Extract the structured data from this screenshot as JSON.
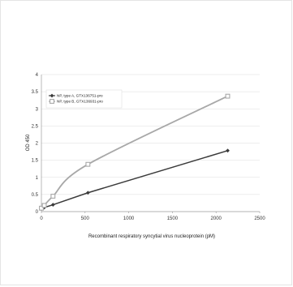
{
  "chart_data": {
    "type": "line",
    "title": "",
    "xlabel": "Recombinant respiratory syncytial virus nucleoprotein (pM)",
    "ylabel": "OD 450",
    "xlim": [
      0,
      2500
    ],
    "ylim": [
      0,
      4
    ],
    "xticks": [
      "0",
      "500",
      "1000",
      "1500",
      "2000",
      "2500"
    ],
    "yticks": [
      "0",
      "0.5",
      "1",
      "1.5",
      "2",
      "2.5",
      "3",
      "3.5",
      "4"
    ],
    "grid": "horizontal",
    "legend_position": "top-left",
    "series": [
      {
        "name": "NP, type A, GTX136751-pro",
        "color": "#3a3a3a",
        "marker": "diamond",
        "x": [
          0,
          33,
          133,
          533,
          2133
        ],
        "y": [
          0.08,
          0.12,
          0.2,
          0.55,
          1.78
        ]
      },
      {
        "name": "NP, type B, GTX136931-pro",
        "color": "#a8a8a8",
        "marker": "square",
        "x": [
          0,
          33,
          133,
          533,
          2133
        ],
        "y": [
          0.1,
          0.18,
          0.45,
          1.38,
          3.37
        ]
      }
    ]
  }
}
